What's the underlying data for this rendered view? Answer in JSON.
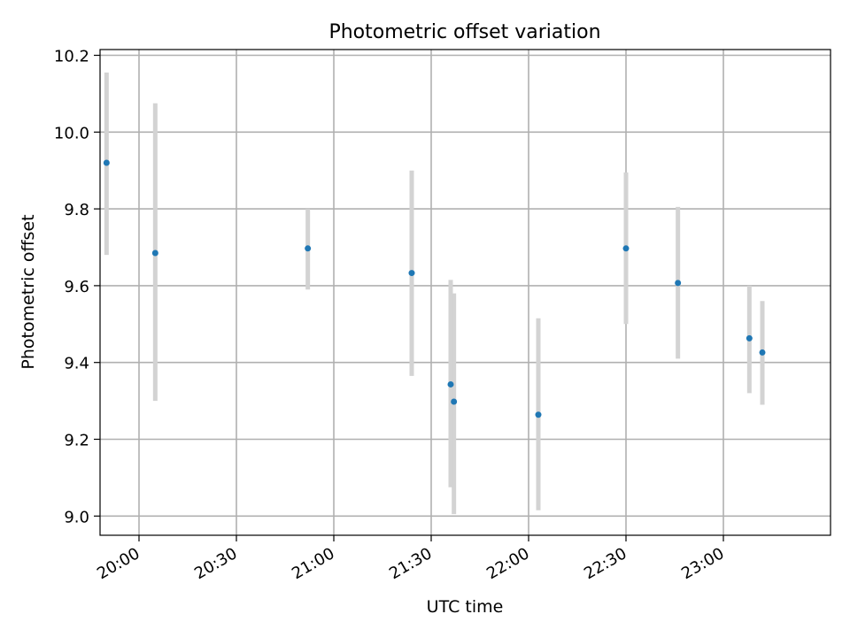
{
  "chart_data": {
    "type": "scatter",
    "title": "Photometric offset variation",
    "xlabel": "UTC time",
    "ylabel": "Photometric offset",
    "grid": true,
    "xlim": [
      "19:48",
      "23:33"
    ],
    "ylim": [
      8.95,
      10.215
    ],
    "x_ticks": [
      "20:00",
      "20:30",
      "21:00",
      "21:30",
      "22:00",
      "22:30",
      "23:00"
    ],
    "y_ticks": [
      "9.0",
      "9.2",
      "9.4",
      "9.6",
      "9.8",
      "10.0",
      "10.2"
    ],
    "series": [
      {
        "x": [
          "19:50",
          "20:05",
          "20:52",
          "21:24",
          "21:36",
          "21:37",
          "22:03",
          "22:30",
          "22:46",
          "23:08",
          "23:12"
        ],
        "y": [
          9.92,
          9.685,
          9.697,
          9.633,
          9.343,
          9.298,
          9.264,
          9.697,
          9.607,
          9.463,
          9.426
        ],
        "error_low": [
          9.68,
          9.3,
          9.59,
          9.365,
          9.075,
          9.005,
          9.015,
          9.5,
          9.41,
          9.32,
          9.29
        ],
        "error_high": [
          10.155,
          10.075,
          9.8,
          9.9,
          9.615,
          9.58,
          9.515,
          9.895,
          9.805,
          9.6,
          9.56
        ]
      }
    ],
    "marker_color": "#1f77b4",
    "errorbar_color": "#d3d3d3"
  }
}
